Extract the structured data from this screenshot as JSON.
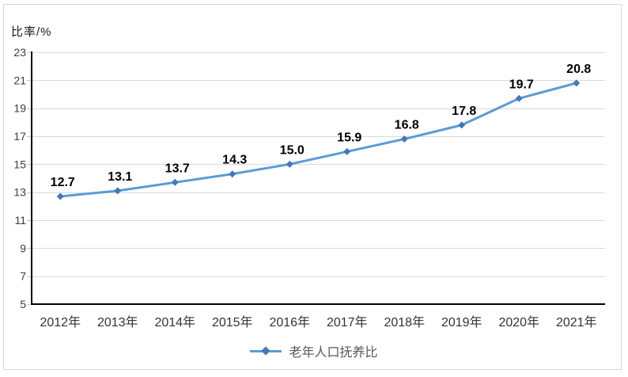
{
  "chart_data": {
    "type": "line",
    "title": "",
    "ylabel": "比率/%",
    "xlabel": "",
    "categories": [
      "2012年",
      "2013年",
      "2014年",
      "2015年",
      "2016年",
      "2017年",
      "2018年",
      "2019年",
      "2020年",
      "2021年"
    ],
    "series": [
      {
        "name": "老年人口抚养比",
        "values": [
          12.7,
          13.1,
          13.7,
          14.3,
          15.0,
          15.9,
          16.8,
          17.8,
          19.7,
          20.8
        ]
      }
    ],
    "ylim": [
      5,
      23
    ],
    "ytick_step": 2,
    "yticks": [
      5,
      7,
      9,
      11,
      13,
      15,
      17,
      19,
      21,
      23
    ],
    "grid": "horizontal",
    "legend_position": "bottom",
    "data_labels": true,
    "colors": {
      "line": "#5b9bd5",
      "marker": "#4577b9",
      "grid": "#d9d9d9",
      "tick_mark": "#c9c9c9",
      "axis": "#000000",
      "y_tick_label": "#3d3d3d",
      "x_tick_label": "#333333",
      "data_label": "#000000",
      "legend_text": "#595959",
      "frame_border": "#d9d9d9"
    }
  }
}
